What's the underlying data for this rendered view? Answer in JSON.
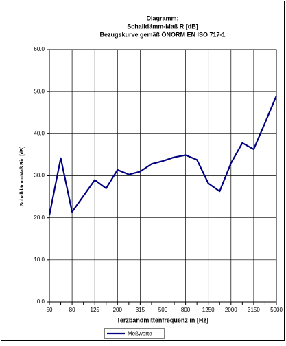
{
  "chart_data": {
    "type": "line",
    "title": [
      "Diagramm:",
      "Schalldämm-Maß R  [dB]",
      "Bezugskurve gemäß ÖNORM EN ISO 717-1"
    ],
    "xlabel": "Terzbandmittenfrequenz in [Hz]",
    "ylabel": "Schalldämm-Maß Rin [dB]",
    "categories": [
      "50",
      null,
      "80",
      null,
      "125",
      null,
      "200",
      null,
      "315",
      null,
      "500",
      null,
      "800",
      null,
      "1250",
      null,
      "2000",
      null,
      "3150",
      null,
      "5000"
    ],
    "series": [
      {
        "name": "Meßwerte",
        "color": "#000080",
        "values": [
          20.6,
          34.2,
          21.4,
          25.2,
          29.0,
          27.0,
          31.4,
          30.3,
          31.0,
          32.8,
          33.5,
          34.4,
          34.9,
          33.8,
          28.2,
          26.3,
          33.0,
          37.8,
          36.3,
          42.6,
          49.0
        ]
      }
    ],
    "ylim": [
      0,
      60
    ],
    "yticks": [
      {
        "value": 0,
        "label": "0.0"
      },
      {
        "value": 10,
        "label": "10.0"
      },
      {
        "value": 20,
        "label": "20.0"
      },
      {
        "value": 30,
        "label": "30.0"
      },
      {
        "value": 40,
        "label": "40.0"
      },
      {
        "value": 50,
        "label": "50.0"
      },
      {
        "value": 60,
        "label": "60.0"
      }
    ],
    "grid": true,
    "legend": "bottom"
  }
}
